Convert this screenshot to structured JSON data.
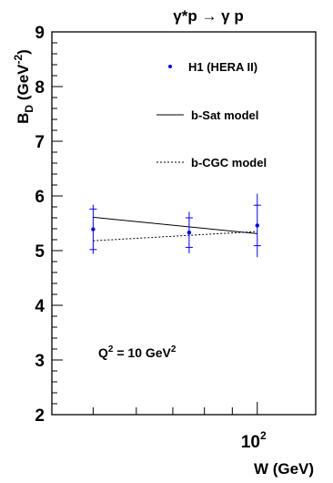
{
  "chart_data": {
    "type": "scatter",
    "title": {
      "main": "γ*p → γ p"
    },
    "xlabel": "W  (GeV)",
    "ylabel": {
      "main": "B",
      "sub": "D",
      "unit_open": " (GeV",
      "unit_sup": "-2",
      "unit_close": ")"
    },
    "x_scale": "log",
    "xlim": [
      42,
      128
    ],
    "ylim": [
      2,
      9
    ],
    "x_ticks": [
      {
        "value": 100,
        "base": "10",
        "exp": "2"
      }
    ],
    "y_ticks": [
      2,
      3,
      4,
      5,
      6,
      7,
      8,
      9
    ],
    "annotation": {
      "base": "Q",
      "sup1": "2",
      "mid": " = 10 GeV",
      "sup2": "2"
    },
    "legend": {
      "placement": "top-right",
      "entries": [
        {
          "label": "H1 (HERA II)",
          "style": "marker"
        },
        {
          "label": "b-Sat model",
          "style": "solid"
        },
        {
          "label": "b-CGC model",
          "style": "dashed"
        }
      ]
    },
    "series": [
      {
        "name": "H1 (HERA II)",
        "kind": "points",
        "color": "#0000ff",
        "points": [
          {
            "x": 50,
            "y": 5.39,
            "stat": 0.37,
            "tot": 0.45
          },
          {
            "x": 75,
            "y": 5.33,
            "stat": 0.27,
            "tot": 0.38
          },
          {
            "x": 100,
            "y": 5.46,
            "stat": 0.37,
            "tot": 0.58
          }
        ]
      },
      {
        "name": "b-Sat model",
        "kind": "line",
        "style": "solid",
        "points": [
          {
            "x": 50,
            "y": 5.61
          },
          {
            "x": 100,
            "y": 5.31
          }
        ]
      },
      {
        "name": "b-CGC model",
        "kind": "line",
        "style": "dashed",
        "points": [
          {
            "x": 50,
            "y": 5.18
          },
          {
            "x": 100,
            "y": 5.35
          }
        ]
      }
    ]
  }
}
